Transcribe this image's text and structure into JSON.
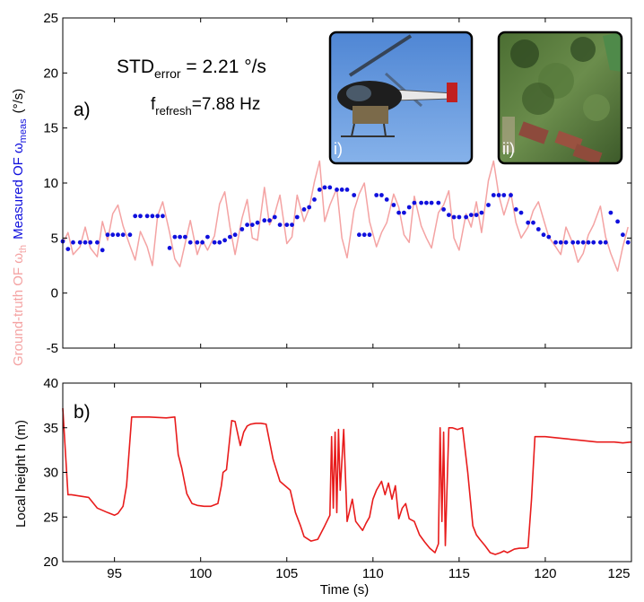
{
  "chart_data": [
    {
      "panel_label": "a)",
      "type": "scatter",
      "xlim": [
        92,
        125
      ],
      "ylim": [
        -5,
        25
      ],
      "y_ticks": [
        -5,
        0,
        5,
        10,
        15,
        20,
        25
      ],
      "y_unit": "(°/s)",
      "ylabel_parts": {
        "measured": "Measured OF ω",
        "measured_sub": "meas",
        "truth": "Ground-truth OF ω",
        "truth_sub": "th"
      },
      "annotations": {
        "std_main": "STD",
        "std_sub": "error",
        "std_value": " = 2.21 °/s",
        "f_main": "f",
        "f_sub": "refresh",
        "f_value": "=7.88 Hz"
      },
      "insets": [
        {
          "label": "i)",
          "content": "helicopter photo"
        },
        {
          "label": "ii)",
          "content": "aerial view photo"
        }
      ],
      "colors": {
        "measured": "#1010dd",
        "ground_truth": "#f4a3a3"
      },
      "series": [
        {
          "role": "ground_truth",
          "style": "line",
          "x": [
            92.0,
            92.3,
            92.6,
            93.0,
            93.3,
            93.6,
            94.0,
            94.3,
            94.6,
            94.9,
            95.2,
            95.5,
            95.9,
            96.2,
            96.5,
            96.9,
            97.2,
            97.5,
            97.8,
            98.2,
            98.5,
            98.8,
            99.1,
            99.4,
            99.8,
            100.1,
            100.4,
            100.8,
            101.1,
            101.4,
            101.7,
            102.0,
            102.4,
            102.7,
            103.0,
            103.3,
            103.7,
            104.0,
            104.3,
            104.6,
            105.0,
            105.3,
            105.6,
            106.0,
            106.3,
            106.6,
            106.9,
            107.2,
            107.5,
            107.9,
            108.2,
            108.5,
            108.9,
            109.2,
            109.5,
            109.8,
            110.2,
            110.5,
            110.8,
            111.2,
            111.5,
            111.8,
            112.1,
            112.4,
            112.8,
            113.1,
            113.4,
            113.8,
            114.1,
            114.4,
            114.7,
            115.0,
            115.4,
            115.7,
            116.0,
            116.3,
            116.7,
            117.0,
            117.3,
            117.6,
            118.0,
            118.3,
            118.6,
            119.0,
            119.3,
            119.6,
            119.9,
            120.2,
            120.6,
            120.9,
            121.2,
            121.6,
            121.9,
            122.2,
            122.5,
            122.8,
            123.2,
            123.5,
            123.8,
            124.2,
            124.5,
            124.8
          ],
          "values": [
            4.5,
            5.5,
            3.5,
            4.2,
            6.0,
            4.1,
            3.3,
            6.5,
            4.8,
            7.2,
            8.0,
            6.1,
            4.3,
            3.0,
            5.6,
            4.2,
            2.5,
            7.0,
            8.3,
            5.5,
            3.1,
            2.4,
            4.5,
            6.6,
            3.5,
            4.8,
            3.9,
            5.2,
            8.1,
            9.2,
            6.0,
            3.5,
            6.8,
            8.5,
            5.0,
            4.8,
            9.6,
            6.2,
            7.2,
            8.9,
            4.5,
            5.1,
            8.9,
            6.5,
            7.7,
            10.1,
            12.0,
            6.5,
            8.0,
            9.5,
            5.0,
            3.2,
            7.5,
            9.0,
            10.0,
            6.5,
            4.2,
            5.5,
            6.4,
            9.0,
            7.8,
            5.3,
            4.6,
            8.8,
            6.1,
            5.0,
            4.1,
            7.3,
            8.0,
            9.3,
            5.0,
            3.9,
            7.2,
            6.0,
            8.3,
            5.5,
            10.2,
            12.0,
            8.9,
            7.1,
            9.1,
            6.4,
            5.0,
            6.0,
            7.5,
            8.3,
            6.7,
            5.1,
            4.2,
            3.5,
            6.0,
            4.5,
            2.8,
            3.6,
            5.3,
            6.2,
            7.9,
            5.1,
            3.6,
            2.0,
            4.2,
            6.0
          ]
        },
        {
          "role": "measured",
          "style": "markers",
          "x": [
            92.0,
            92.3,
            92.6,
            93.0,
            93.3,
            93.6,
            94.0,
            94.3,
            94.6,
            94.9,
            95.2,
            95.5,
            95.9,
            96.2,
            96.5,
            96.9,
            97.2,
            97.5,
            97.8,
            98.2,
            98.5,
            98.8,
            99.1,
            99.4,
            99.8,
            100.1,
            100.4,
            100.8,
            101.1,
            101.4,
            101.7,
            102.0,
            102.4,
            102.7,
            103.0,
            103.3,
            103.7,
            104.0,
            104.3,
            104.6,
            105.0,
            105.3,
            105.6,
            106.0,
            106.3,
            106.6,
            106.9,
            107.2,
            107.5,
            107.9,
            108.2,
            108.5,
            108.9,
            109.2,
            109.5,
            109.8,
            110.2,
            110.5,
            110.8,
            111.2,
            111.5,
            111.8,
            112.1,
            112.4,
            112.8,
            113.1,
            113.4,
            113.8,
            114.1,
            114.4,
            114.7,
            115.0,
            115.4,
            115.7,
            116.0,
            116.3,
            116.7,
            117.0,
            117.3,
            117.6,
            118.0,
            118.3,
            118.6,
            119.0,
            119.3,
            119.6,
            119.9,
            120.2,
            120.6,
            120.9,
            121.2,
            121.6,
            121.9,
            122.2,
            122.5,
            122.8,
            123.2,
            123.5,
            123.8,
            124.2,
            124.5,
            124.8
          ],
          "values": [
            4.7,
            4.0,
            4.6,
            4.6,
            4.6,
            4.6,
            4.6,
            3.9,
            5.3,
            5.3,
            5.3,
            5.3,
            5.3,
            7.0,
            7.0,
            7.0,
            7.0,
            7.0,
            7.0,
            4.1,
            5.1,
            5.1,
            5.1,
            4.6,
            4.6,
            4.6,
            5.1,
            4.6,
            4.6,
            4.8,
            5.1,
            5.3,
            5.8,
            6.2,
            6.2,
            6.4,
            6.6,
            6.6,
            6.9,
            6.2,
            6.2,
            6.2,
            6.9,
            7.6,
            7.8,
            8.5,
            9.4,
            9.6,
            9.6,
            9.4,
            9.4,
            9.4,
            8.9,
            5.3,
            5.3,
            5.3,
            8.9,
            8.9,
            8.5,
            8.0,
            7.3,
            7.3,
            7.8,
            8.2,
            8.2,
            8.2,
            8.2,
            8.2,
            7.6,
            7.1,
            6.9,
            6.9,
            6.9,
            7.1,
            7.1,
            7.3,
            8.0,
            8.9,
            8.9,
            8.9,
            8.9,
            7.6,
            7.3,
            6.4,
            6.4,
            5.8,
            5.3,
            5.1,
            4.6,
            4.6,
            4.6,
            4.6,
            4.6,
            4.6,
            4.6,
            4.6,
            4.6,
            4.6,
            7.3,
            6.5,
            5.3,
            4.6
          ]
        }
      ]
    },
    {
      "panel_label": "b)",
      "type": "line",
      "xlim": [
        92,
        125
      ],
      "ylim": [
        20,
        40
      ],
      "x_ticks": [
        95,
        100,
        105,
        110,
        115,
        120,
        125
      ],
      "y_ticks": [
        20,
        25,
        30,
        35,
        40
      ],
      "xlabel": "Time (s)",
      "ylabel": "Local height h (m)",
      "colors": {
        "line": "#e81c1c"
      },
      "x": [
        92.0,
        92.3,
        92.5,
        93.5,
        94.0,
        94.6,
        95.0,
        95.2,
        95.5,
        95.7,
        96.0,
        97.0,
        98.0,
        98.5,
        98.7,
        98.9,
        99.2,
        99.5,
        99.8,
        100.2,
        100.6,
        101.0,
        101.2,
        101.3,
        101.5,
        101.8,
        102.0,
        102.3,
        102.5,
        102.7,
        102.9,
        103.2,
        103.5,
        103.8,
        104.2,
        104.6,
        104.9,
        105.2,
        105.5,
        105.8,
        106.0,
        106.4,
        106.8,
        107.2,
        107.5,
        107.6,
        107.7,
        107.8,
        107.9,
        108.0,
        108.1,
        108.3,
        108.5,
        108.8,
        109.0,
        109.2,
        109.4,
        109.6,
        109.8,
        110.0,
        110.2,
        110.5,
        110.7,
        110.9,
        111.1,
        111.3,
        111.5,
        111.7,
        111.9,
        112.1,
        112.4,
        112.7,
        113.0,
        113.3,
        113.6,
        113.8,
        113.9,
        114.0,
        114.1,
        114.2,
        114.4,
        114.6,
        114.9,
        115.2,
        115.5,
        115.8,
        116.0,
        116.2,
        116.5,
        116.8,
        117.1,
        117.4,
        117.6,
        117.8,
        118.0,
        118.2,
        118.5,
        118.8,
        119.0,
        119.2,
        119.4,
        120.0,
        121.0,
        122.0,
        123.0,
        124.0,
        124.5,
        125.0
      ],
      "values": [
        37.2,
        27.5,
        27.5,
        27.2,
        26.0,
        25.5,
        25.2,
        25.4,
        26.2,
        28.5,
        36.2,
        36.2,
        36.1,
        36.2,
        32.0,
        30.5,
        27.6,
        26.5,
        26.3,
        26.2,
        26.2,
        26.5,
        28.5,
        30.0,
        30.3,
        35.8,
        35.7,
        33.0,
        34.5,
        35.2,
        35.4,
        35.5,
        35.5,
        35.4,
        31.5,
        29.0,
        28.5,
        28.0,
        25.5,
        24.0,
        22.8,
        22.3,
        22.5,
        24.0,
        25.2,
        34.0,
        26.0,
        34.5,
        25.5,
        34.8,
        28.0,
        34.8,
        24.5,
        27.0,
        24.5,
        24.0,
        23.5,
        24.3,
        25.0,
        27.0,
        28.0,
        29.0,
        27.5,
        28.8,
        27.0,
        28.5,
        24.8,
        26.0,
        26.5,
        24.8,
        24.5,
        23.0,
        22.2,
        21.5,
        21.0,
        22.0,
        35.0,
        24.5,
        34.5,
        21.8,
        35.0,
        35.0,
        34.8,
        35.0,
        30.0,
        24.0,
        23.0,
        22.5,
        21.8,
        21.0,
        20.8,
        21.0,
        21.2,
        21.0,
        21.2,
        21.4,
        21.5,
        21.5,
        21.6,
        27.0,
        34.0,
        34.0,
        33.8,
        33.6,
        33.4,
        33.4,
        33.3,
        33.4
      ]
    }
  ]
}
